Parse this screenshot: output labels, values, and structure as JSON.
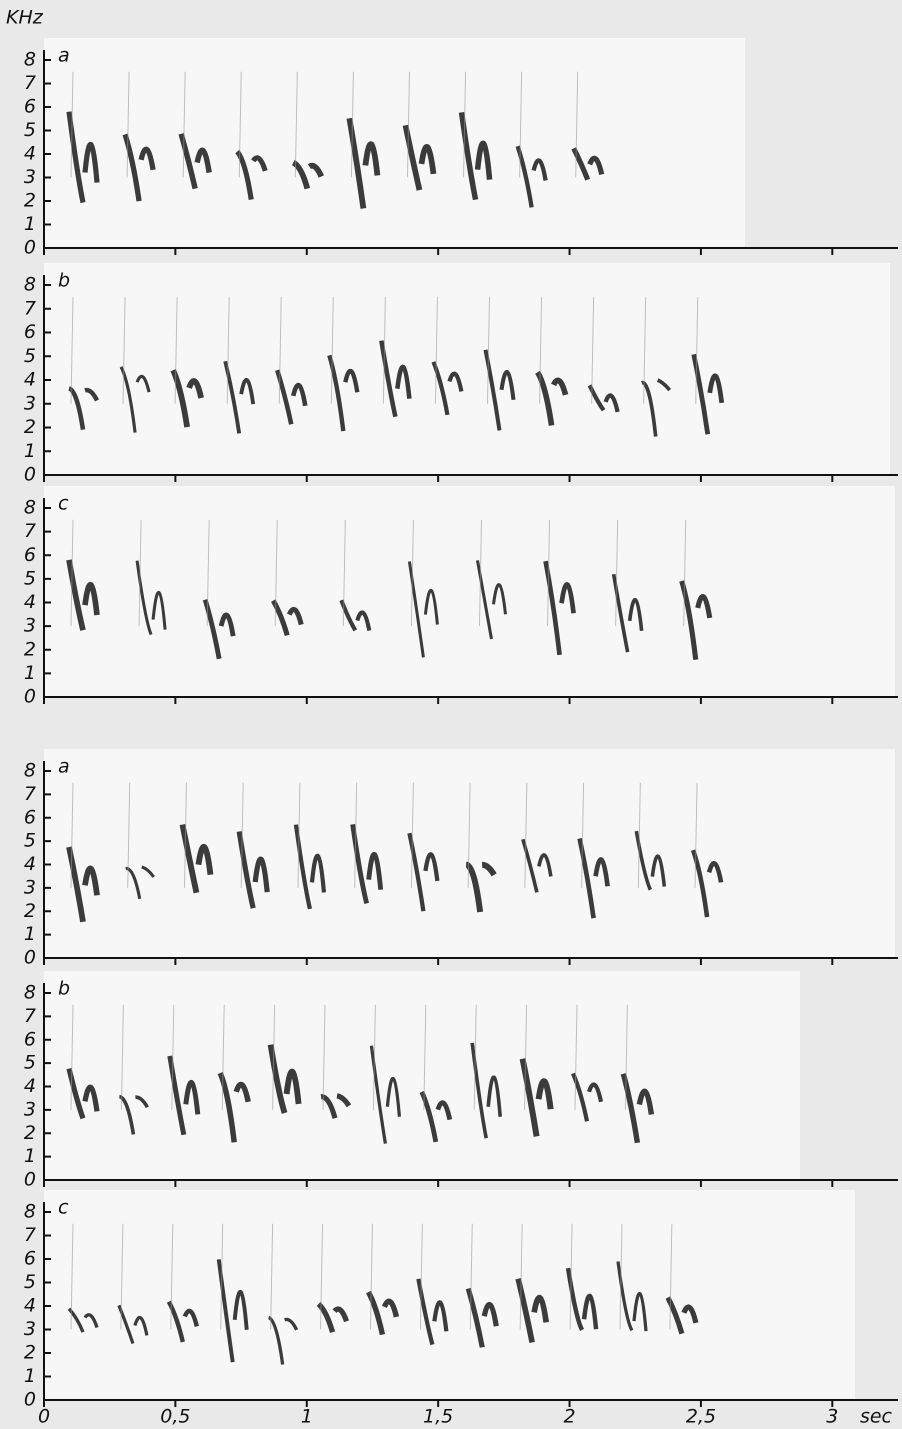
{
  "y_axis_label": "KHz",
  "x_axis_label": "sec",
  "xlim": [
    0,
    3.25
  ],
  "xticks": [
    0,
    {
      "value": 0.5,
      "label": "0,5"
    },
    1,
    {
      "value": 1.5,
      "label": "1,5"
    },
    2,
    {
      "value": 2.5,
      "label": "2,5"
    },
    3
  ],
  "panels": [
    {
      "label": "a",
      "ylim": [
        0,
        8
      ],
      "yticks": [
        0,
        1,
        2,
        3,
        4,
        5,
        6,
        7,
        8
      ]
    },
    {
      "label": "b",
      "ylim": [
        0,
        8
      ],
      "yticks": [
        0,
        1,
        2,
        3,
        4,
        5,
        6,
        7,
        8
      ]
    },
    {
      "label": "c",
      "ylim": [
        0,
        8
      ],
      "yticks": [
        0,
        1,
        2,
        3,
        4,
        5,
        6,
        7,
        8
      ]
    },
    {
      "label": "a",
      "ylim": [
        0,
        8
      ],
      "yticks": [
        0,
        1,
        2,
        3,
        4,
        5,
        6,
        7,
        8
      ]
    },
    {
      "label": "b",
      "ylim": [
        0,
        8
      ],
      "yticks": [
        0,
        1,
        2,
        3,
        4,
        5,
        6,
        7,
        8
      ]
    },
    {
      "label": "c",
      "ylim": [
        0,
        8
      ],
      "yticks": [
        0,
        1,
        2,
        3,
        4,
        5,
        6,
        7,
        8
      ]
    }
  ]
}
